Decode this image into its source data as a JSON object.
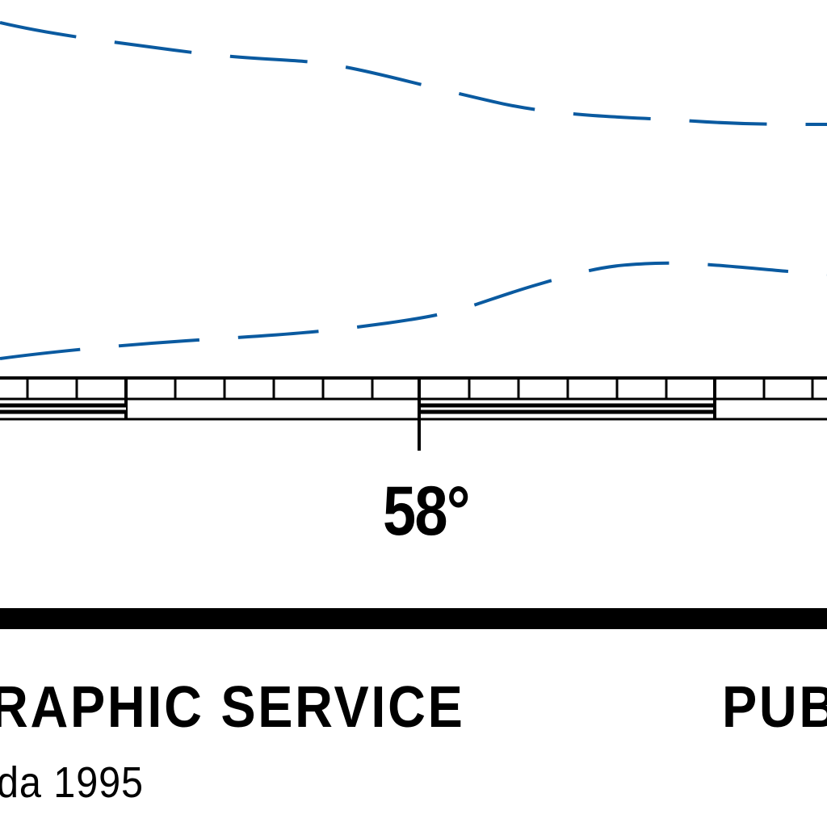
{
  "map": {
    "latitude_label": "58°",
    "publisher_fragment": "RAPHIC  SERVICE",
    "publication_fragment": "PUB",
    "edition_fragment": "da 1995",
    "colors": {
      "contour_line": "#0a5aa0",
      "border": "#000000",
      "background": "#ffffff"
    }
  }
}
